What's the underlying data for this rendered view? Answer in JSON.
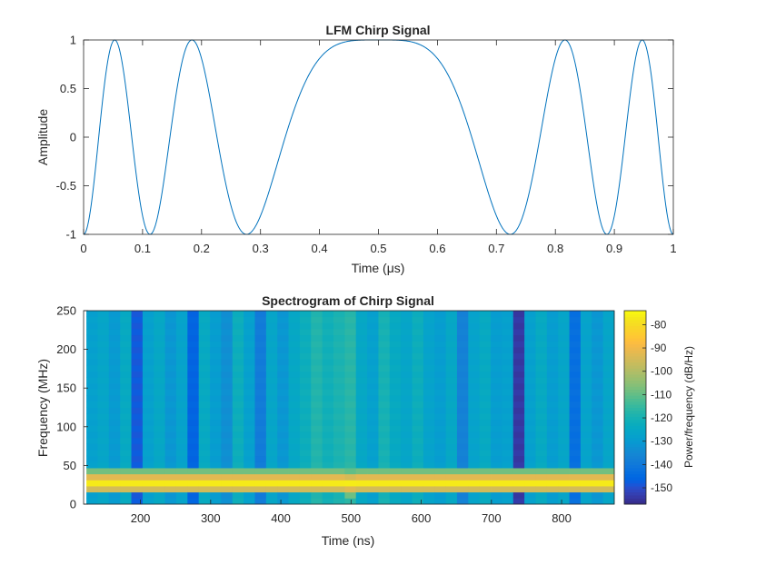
{
  "figure": {
    "background": "#ffffff"
  },
  "chart_data": [
    {
      "type": "line",
      "title": "LFM Chirp Signal",
      "xlabel": "Time  (μs)",
      "ylabel": "Amplitude",
      "xlim": [
        0,
        1
      ],
      "ylim": [
        -1,
        1
      ],
      "xticks": [
        "0",
        "0.1",
        "0.2",
        "0.3",
        "0.4",
        "0.5",
        "0.6",
        "0.7",
        "0.8",
        "0.9",
        "1"
      ],
      "yticks": [
        "-1",
        "-0.5",
        "0",
        "0.5",
        "1"
      ],
      "line_color": "#0072bd",
      "signal": {
        "formula": "cos(phase) with instantaneous frequency linear in time, zero at t = 0.5 μs",
        "phase_quadratic_coefficient": 62.83,
        "center_time": 0.5,
        "samples": 1000
      },
      "grid": false
    },
    {
      "type": "heatmap",
      "title": "Spectrogram of Chirp Signal",
      "xlabel": "Time (ns)",
      "ylabel": "Frequency (MHz)",
      "xlim": [
        119,
        875
      ],
      "ylim": [
        0,
        250
      ],
      "xticks": [
        "200",
        "300",
        "400",
        "500",
        "600",
        "700",
        "800"
      ],
      "xtick_values": [
        200,
        300,
        400,
        500,
        600,
        700,
        800
      ],
      "yticks": [
        "0",
        "50",
        "100",
        "150",
        "200",
        "250"
      ],
      "ytick_values": [
        0,
        50,
        100,
        150,
        200,
        250
      ],
      "colorbar": {
        "label": "Power/frequency (dB/Hz)",
        "range": [
          -157,
          -74
        ],
        "ticks": [
          "-80",
          "-90",
          "-100",
          "-110",
          "-120",
          "-130",
          "-140",
          "-150"
        ],
        "tick_values": [
          -80,
          -90,
          -100,
          -110,
          -120,
          -130,
          -140,
          -150
        ]
      },
      "colormap": "parula",
      "time_bins": [
        131,
        147,
        163,
        179,
        195,
        211,
        227,
        243,
        259,
        275,
        291,
        307,
        323,
        339,
        355,
        371,
        387,
        403,
        419,
        435,
        451,
        467,
        483,
        499,
        515,
        531,
        547,
        563,
        579,
        595,
        611,
        627,
        643,
        659,
        675,
        691,
        707,
        723,
        739,
        755,
        771,
        787,
        803,
        819,
        835,
        851,
        867
      ],
      "column_floor_db": [
        -128,
        -126,
        -130,
        -124,
        -148,
        -128,
        -125,
        -131,
        -127,
        -146,
        -124,
        -129,
        -133,
        -122,
        -128,
        -139,
        -126,
        -131,
        -125,
        -122,
        -118,
        -121,
        -119,
        -117,
        -125,
        -128,
        -120,
        -124,
        -126,
        -122,
        -127,
        -129,
        -125,
        -137,
        -127,
        -124,
        -129,
        -128,
        -154,
        -128,
        -124,
        -129,
        -126,
        -143,
        -127,
        -131,
        -126
      ],
      "ridge": {
        "description": "power maximum follows |dB| ≈ -77 along instantaneous frequency of chirp",
        "peak_db": -76
      },
      "grid": false
    }
  ]
}
